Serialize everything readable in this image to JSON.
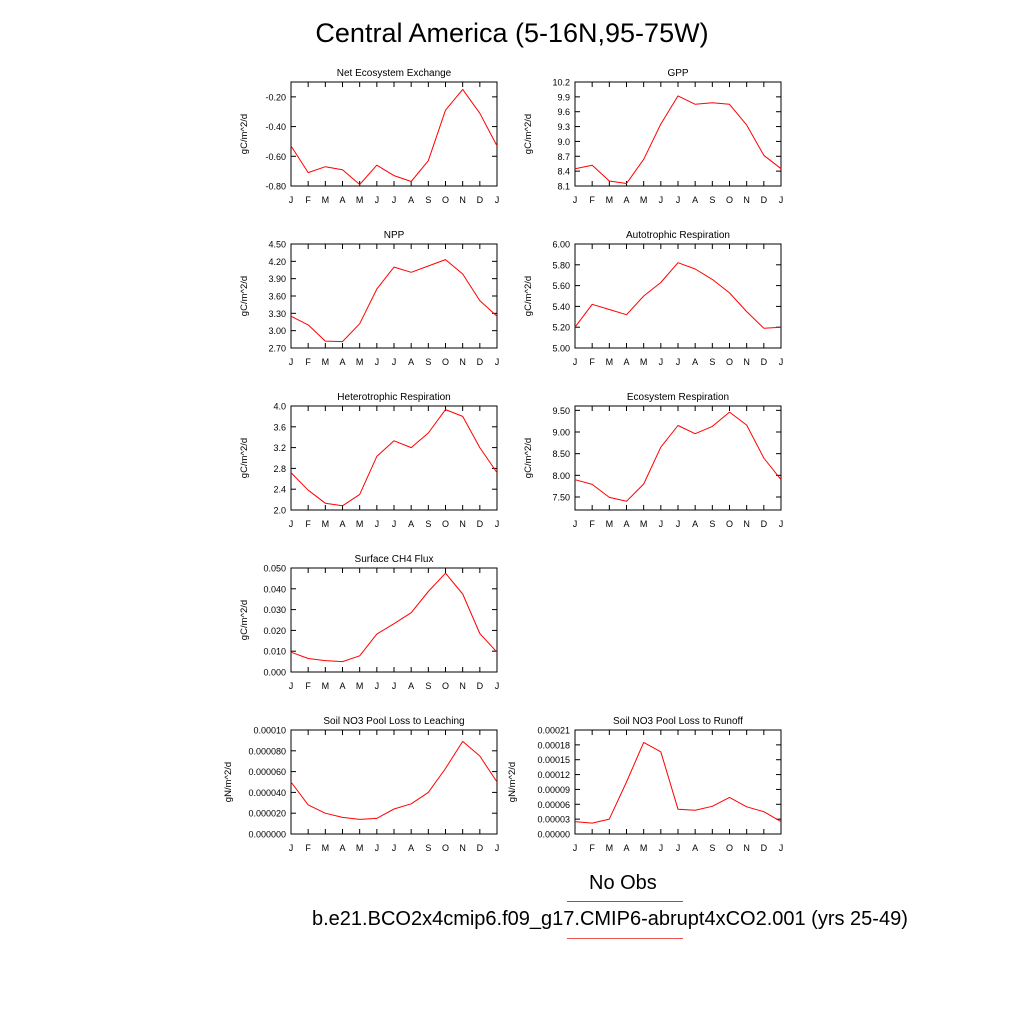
{
  "title": "Central America (5-16N,95-75W)",
  "months": [
    "J",
    "F",
    "M",
    "A",
    "M",
    "J",
    "J",
    "A",
    "S",
    "O",
    "N",
    "D",
    "J"
  ],
  "colors": {
    "model": "#ff0000",
    "obs": "#0000ff",
    "axis": "#000000"
  },
  "legend": {
    "obs_label": "No Obs",
    "model_label": "b.e21.BCO2x4cmip6.f09_g17.CMIP6-abrupt4xCO2.001 (yrs 25-49)"
  },
  "chart_data": [
    {
      "id": "nee",
      "type": "line",
      "title": "Net Ecosystem Exchange",
      "ylabel": "gC/m^2/d",
      "ylim": [
        -0.8,
        -0.1
      ],
      "yticks": [
        -0.8,
        -0.6,
        -0.4,
        -0.2
      ],
      "yticklabels": [
        "-0.80",
        "-0.60",
        "-0.40",
        "-0.20"
      ],
      "series": [
        {
          "name": "model",
          "values": [
            -0.53,
            -0.71,
            -0.67,
            -0.69,
            -0.79,
            -0.66,
            -0.73,
            -0.77,
            -0.63,
            -0.29,
            -0.15,
            -0.31,
            -0.53
          ]
        }
      ]
    },
    {
      "id": "gpp",
      "type": "line",
      "title": "GPP",
      "ylabel": "gC/m^2/d",
      "ylim": [
        8.1,
        10.2
      ],
      "yticks": [
        8.1,
        8.4,
        8.7,
        9.0,
        9.3,
        9.6,
        9.9,
        10.2
      ],
      "yticklabels": [
        "8.1",
        "8.4",
        "8.7",
        "9.0",
        "9.3",
        "9.6",
        "9.9",
        "10.2"
      ],
      "series": [
        {
          "name": "model",
          "values": [
            8.45,
            8.52,
            8.2,
            8.15,
            8.64,
            9.35,
            9.92,
            9.75,
            9.78,
            9.75,
            9.33,
            8.72,
            8.45
          ]
        }
      ]
    },
    {
      "id": "npp",
      "type": "line",
      "title": "NPP",
      "ylabel": "gC/m^2/d",
      "ylim": [
        2.7,
        4.5
      ],
      "yticks": [
        2.7,
        3.0,
        3.3,
        3.6,
        3.9,
        4.2,
        4.5
      ],
      "yticklabels": [
        "2.70",
        "3.00",
        "3.30",
        "3.60",
        "3.90",
        "4.20",
        "4.50"
      ],
      "series": [
        {
          "name": "model",
          "values": [
            3.25,
            3.1,
            2.82,
            2.81,
            3.12,
            3.72,
            4.1,
            4.01,
            4.12,
            4.23,
            3.98,
            3.52,
            3.25
          ]
        }
      ]
    },
    {
      "id": "ar",
      "type": "line",
      "title": "Autotrophic Respiration",
      "ylabel": "gC/m^2/d",
      "ylim": [
        5.0,
        6.0
      ],
      "yticks": [
        5.0,
        5.2,
        5.4,
        5.6,
        5.8,
        6.0
      ],
      "yticklabels": [
        "5.00",
        "5.20",
        "5.40",
        "5.60",
        "5.80",
        "6.00"
      ],
      "series": [
        {
          "name": "model",
          "values": [
            5.2,
            5.42,
            5.37,
            5.32,
            5.5,
            5.63,
            5.82,
            5.76,
            5.66,
            5.53,
            5.35,
            5.19,
            5.2
          ]
        }
      ]
    },
    {
      "id": "hr",
      "type": "line",
      "title": "Heterotrophic Respiration",
      "ylabel": "gC/m^2/d",
      "ylim": [
        2.0,
        4.0
      ],
      "yticks": [
        2.0,
        2.4,
        2.8,
        3.2,
        3.6,
        4.0
      ],
      "yticklabels": [
        "2.0",
        "2.4",
        "2.8",
        "3.2",
        "3.6",
        "4.0"
      ],
      "series": [
        {
          "name": "model",
          "values": [
            2.72,
            2.38,
            2.13,
            2.08,
            2.3,
            3.03,
            3.33,
            3.2,
            3.48,
            3.93,
            3.8,
            3.2,
            2.72
          ]
        }
      ]
    },
    {
      "id": "er",
      "type": "line",
      "title": "Ecosystem Respiration",
      "ylabel": "gC/m^2/d",
      "ylim": [
        7.2,
        9.6
      ],
      "yticks": [
        7.5,
        8.0,
        8.5,
        9.0,
        9.5
      ],
      "yticklabels": [
        "7.50",
        "8.00",
        "8.50",
        "9.00",
        "9.50"
      ],
      "series": [
        {
          "name": "model",
          "values": [
            7.9,
            7.79,
            7.49,
            7.4,
            7.8,
            8.65,
            9.15,
            8.96,
            9.13,
            9.46,
            9.16,
            8.4,
            7.9
          ]
        }
      ]
    },
    {
      "id": "ch4",
      "type": "line",
      "title": "Surface CH4 Flux",
      "ylabel": "gC/m^2/d",
      "ylim": [
        0.0,
        0.05
      ],
      "yticks": [
        0.0,
        0.01,
        0.02,
        0.03,
        0.04,
        0.05
      ],
      "yticklabels": [
        "0.000",
        "0.010",
        "0.020",
        "0.030",
        "0.040",
        "0.050"
      ],
      "series": [
        {
          "name": "model",
          "values": [
            0.0095,
            0.0065,
            0.0055,
            0.005,
            0.0078,
            0.0182,
            0.0232,
            0.0285,
            0.0387,
            0.0475,
            0.0375,
            0.0185,
            0.0095
          ]
        }
      ]
    },
    {
      "id": "leach",
      "type": "line",
      "title": "Soil NO3 Pool Loss to Leaching",
      "ylabel": "gN/m^2/d",
      "ylim": [
        0.0,
        0.0001
      ],
      "yticks": [
        0.0,
        2e-05,
        4e-05,
        6e-05,
        8e-05,
        0.0001
      ],
      "yticklabels": [
        "0.000000",
        "0.000020",
        "0.000040",
        "0.000060",
        "0.000080",
        "0.00010"
      ],
      "series": [
        {
          "name": "model",
          "values": [
            5e-05,
            2.8e-05,
            2e-05,
            1.6e-05,
            1.4e-05,
            1.5e-05,
            2.4e-05,
            2.9e-05,
            4e-05,
            6.3e-05,
            8.9e-05,
            7.5e-05,
            5e-05
          ]
        }
      ]
    },
    {
      "id": "runoff",
      "type": "line",
      "title": "Soil NO3 Pool Loss to Runoff",
      "ylabel": "gN/m^2/d",
      "ylim": [
        0.0,
        0.00021
      ],
      "yticks": [
        0.0,
        3e-05,
        6e-05,
        9e-05,
        0.00012,
        0.00015,
        0.00018,
        0.00021
      ],
      "yticklabels": [
        "0.00000",
        "0.00003",
        "0.00006",
        "0.00009",
        "0.00012",
        "0.00015",
        "0.00018",
        "0.00021"
      ],
      "series": [
        {
          "name": "model",
          "values": [
            2.5e-05,
            2.2e-05,
            3e-05,
            0.000105,
            0.000185,
            0.000166,
            5e-05,
            4.8e-05,
            5.6e-05,
            7.4e-05,
            5.5e-05,
            4.5e-05,
            2.5e-05
          ]
        }
      ]
    }
  ]
}
